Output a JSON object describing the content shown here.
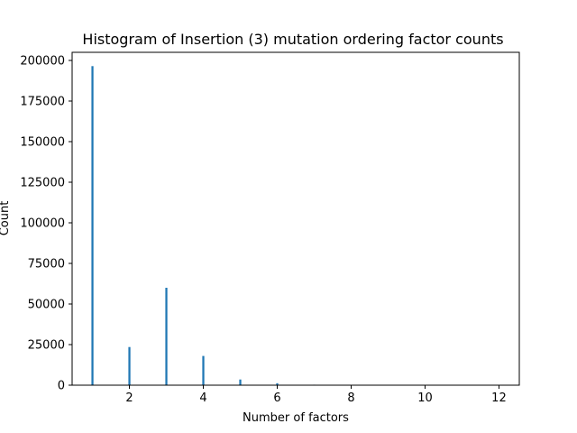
{
  "chart_data": {
    "type": "bar",
    "title": "Histogram of Insertion (3) mutation ordering factor counts",
    "xlabel": "Number of factors",
    "ylabel": "Count",
    "xlim": [
      0.45,
      12.55
    ],
    "ylim": [
      0,
      205000
    ],
    "xticks": [
      2,
      4,
      6,
      8,
      10,
      12
    ],
    "yticks": [
      0,
      25000,
      50000,
      75000,
      100000,
      125000,
      150000,
      175000,
      200000
    ],
    "bin_width": 0.055,
    "grid": false,
    "color": "#1f77b4",
    "bins": [
      {
        "x": 1,
        "count": 196500
      },
      {
        "x": 2,
        "count": 23500
      },
      {
        "x": 3,
        "count": 60000
      },
      {
        "x": 4,
        "count": 18000
      },
      {
        "x": 5,
        "count": 3500
      },
      {
        "x": 6,
        "count": 1200
      },
      {
        "x": 7,
        "count": 300
      },
      {
        "x": 8,
        "count": 80
      },
      {
        "x": 9,
        "count": 20
      },
      {
        "x": 10,
        "count": 5
      },
      {
        "x": 11,
        "count": 2
      },
      {
        "x": 12,
        "count": 1
      }
    ]
  }
}
